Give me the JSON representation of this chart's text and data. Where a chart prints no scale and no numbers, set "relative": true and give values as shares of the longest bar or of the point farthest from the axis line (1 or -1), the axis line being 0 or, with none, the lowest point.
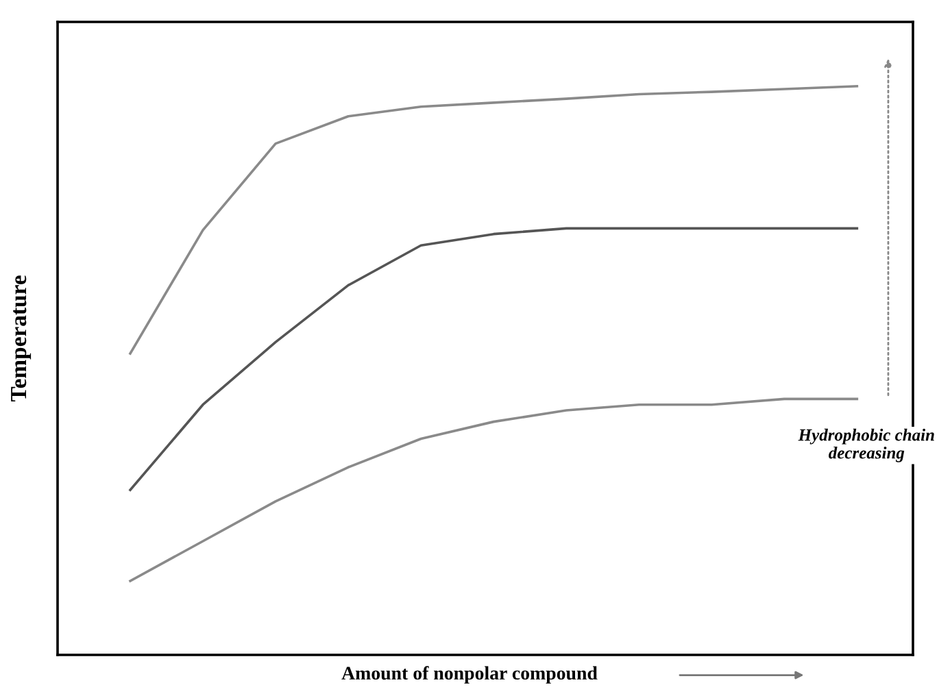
{
  "chart_data": {
    "type": "line",
    "relative": true,
    "xlabel": "Amount of nonpolar compound",
    "ylabel": "Temperature",
    "categories": [
      null,
      null,
      null,
      null,
      null,
      null,
      null,
      null,
      null,
      null,
      null
    ],
    "series": [
      {
        "color": "#8a8a8a",
        "values": [
          0.53,
          0.747,
          0.899,
          0.947,
          0.964,
          0.971,
          0.978,
          0.986,
          0.99,
          0.995,
          1
        ]
      },
      {
        "color": "#555555",
        "values": [
          0.29,
          0.44,
          0.55,
          0.65,
          0.72,
          0.74,
          0.75,
          0.75,
          0.75,
          0.75,
          0.75
        ]
      },
      {
        "color": "#8a8a8a",
        "values": [
          0.13,
          0.2,
          0.27,
          0.33,
          0.38,
          0.41,
          0.43,
          0.44,
          0.44,
          0.45,
          0.45
        ]
      }
    ],
    "annotations": [
      "Hydrophobic chain\ndecreasing"
    ],
    "grid": false,
    "legend": false,
    "line_style": "solid",
    "marker": "none"
  }
}
